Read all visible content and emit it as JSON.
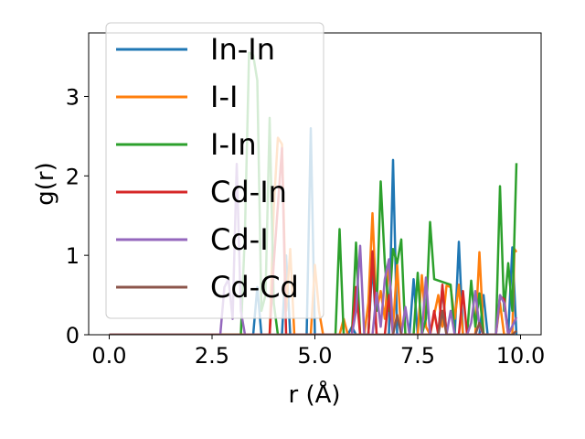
{
  "chart_data": {
    "type": "line",
    "xlabel": "r (Å)",
    "ylabel": "g(r)",
    "xlim": [
      -0.5,
      10.5
    ],
    "ylim": [
      0,
      3.8
    ],
    "xticks": [
      0.0,
      2.5,
      5.0,
      7.5,
      10.0
    ],
    "xtick_labels": [
      "0.0",
      "2.5",
      "5.0",
      "7.5",
      "10.0"
    ],
    "yticks": [
      0,
      1,
      2,
      3
    ],
    "ytick_labels": [
      "0",
      "1",
      "2",
      "3"
    ],
    "grid": false,
    "legend_position": "top-left",
    "series": [
      {
        "name": "In-In",
        "color": "#1f77b4",
        "points": [
          [
            0,
            0
          ],
          [
            3.5,
            0
          ],
          [
            3.6,
            0.6
          ],
          [
            3.7,
            0
          ],
          [
            4.2,
            0
          ],
          [
            4.3,
            1.0
          ],
          [
            4.4,
            0
          ],
          [
            4.8,
            0
          ],
          [
            4.9,
            2.6
          ],
          [
            5.0,
            0
          ],
          [
            5.8,
            0
          ],
          [
            5.9,
            0.1
          ],
          [
            6.0,
            0
          ],
          [
            6.3,
            0
          ],
          [
            6.4,
            0.9
          ],
          [
            6.5,
            0
          ],
          [
            6.8,
            0
          ],
          [
            6.9,
            2.2
          ],
          [
            7.0,
            0
          ],
          [
            7.3,
            0
          ],
          [
            7.4,
            0.7
          ],
          [
            7.5,
            0
          ],
          [
            8.0,
            0
          ],
          [
            8.1,
            0.6
          ],
          [
            8.2,
            0
          ],
          [
            8.4,
            0
          ],
          [
            8.5,
            1.17
          ],
          [
            8.6,
            0
          ],
          [
            9.0,
            0
          ],
          [
            9.1,
            0.5
          ],
          [
            9.2,
            0
          ],
          [
            9.7,
            0
          ],
          [
            9.8,
            1.1
          ],
          [
            9.9,
            0
          ]
        ]
      },
      {
        "name": "I-I",
        "color": "#ff7f0e",
        "points": [
          [
            0,
            0
          ],
          [
            3.9,
            0
          ],
          [
            4.0,
            1.6
          ],
          [
            4.1,
            2.48
          ],
          [
            4.2,
            2.4
          ],
          [
            4.3,
            0.3
          ],
          [
            4.4,
            1.08
          ],
          [
            4.5,
            0
          ],
          [
            4.9,
            0
          ],
          [
            5.0,
            0.88
          ],
          [
            5.1,
            0.3
          ],
          [
            5.2,
            0
          ],
          [
            5.6,
            0
          ],
          [
            5.7,
            0.2
          ],
          [
            5.8,
            0
          ],
          [
            6.2,
            0
          ],
          [
            6.3,
            0.4
          ],
          [
            6.4,
            1.53
          ],
          [
            6.5,
            0.3
          ],
          [
            6.6,
            0.55
          ],
          [
            6.7,
            0.2
          ],
          [
            6.8,
            0.9
          ],
          [
            6.9,
            0.1
          ],
          [
            7.0,
            0.88
          ],
          [
            7.1,
            0
          ],
          [
            7.5,
            0
          ],
          [
            7.6,
            0.75
          ],
          [
            7.7,
            0.1
          ],
          [
            7.8,
            0
          ],
          [
            8.0,
            0.5
          ],
          [
            8.1,
            0.1
          ],
          [
            8.2,
            0.62
          ],
          [
            8.3,
            0.6
          ],
          [
            8.4,
            0.2
          ],
          [
            8.5,
            0.63
          ],
          [
            8.6,
            0
          ],
          [
            8.9,
            0
          ],
          [
            9.0,
            1.04
          ],
          [
            9.1,
            0
          ],
          [
            9.4,
            0
          ],
          [
            9.5,
            0.4
          ],
          [
            9.6,
            0
          ],
          [
            9.8,
            0
          ],
          [
            9.85,
            1.08
          ],
          [
            9.9,
            1.04
          ]
        ]
      },
      {
        "name": "I-In",
        "color": "#2ca02c",
        "points": [
          [
            0,
            0
          ],
          [
            3.2,
            0
          ],
          [
            3.3,
            1.3
          ],
          [
            3.4,
            3.55
          ],
          [
            3.5,
            3.52
          ],
          [
            3.6,
            3.2
          ],
          [
            3.7,
            0.3
          ],
          [
            3.8,
            0.5
          ],
          [
            3.9,
            2.73
          ],
          [
            4.0,
            0.4
          ],
          [
            4.1,
            0
          ],
          [
            5.5,
            0
          ],
          [
            5.6,
            1.33
          ],
          [
            5.7,
            0
          ],
          [
            5.9,
            0
          ],
          [
            6.0,
            1.16
          ],
          [
            6.1,
            0
          ],
          [
            6.3,
            0
          ],
          [
            6.4,
            1.03
          ],
          [
            6.5,
            0.3
          ],
          [
            6.6,
            1.93
          ],
          [
            6.7,
            0.9
          ],
          [
            6.8,
            0.3
          ],
          [
            6.9,
            1.08
          ],
          [
            7.0,
            0.9
          ],
          [
            7.1,
            1.2
          ],
          [
            7.2,
            0
          ],
          [
            7.4,
            0
          ],
          [
            7.5,
            0.78
          ],
          [
            7.6,
            0
          ],
          [
            7.7,
            0.2
          ],
          [
            7.8,
            1.42
          ],
          [
            7.9,
            0.7
          ],
          [
            8.3,
            0.63
          ],
          [
            8.4,
            0
          ],
          [
            8.7,
            0
          ],
          [
            8.8,
            0.68
          ],
          [
            8.9,
            0.1
          ],
          [
            9.0,
            0.52
          ],
          [
            9.1,
            0
          ],
          [
            9.4,
            0
          ],
          [
            9.5,
            1.87
          ],
          [
            9.6,
            0.3
          ],
          [
            9.7,
            0.9
          ],
          [
            9.8,
            0.3
          ],
          [
            9.9,
            2.16
          ]
        ]
      },
      {
        "name": "Cd-In",
        "color": "#d62728",
        "points": [
          [
            0,
            0
          ],
          [
            3.9,
            0
          ],
          [
            4.0,
            0.9
          ],
          [
            4.2,
            2.35
          ],
          [
            4.3,
            0
          ],
          [
            5.9,
            0
          ],
          [
            6.0,
            0.6
          ],
          [
            6.1,
            0
          ],
          [
            6.3,
            0
          ],
          [
            6.4,
            1.05
          ],
          [
            6.5,
            0
          ],
          [
            6.7,
            0
          ],
          [
            6.8,
            0.5
          ],
          [
            6.9,
            0
          ],
          [
            7.8,
            0
          ],
          [
            7.9,
            0.3
          ],
          [
            8.0,
            0
          ],
          [
            8.1,
            0.63
          ],
          [
            8.2,
            0
          ],
          [
            8.5,
            0
          ],
          [
            8.6,
            0.55
          ],
          [
            8.7,
            0
          ],
          [
            9.4,
            0
          ],
          [
            9.5,
            0.48
          ],
          [
            9.6,
            0.45
          ],
          [
            9.7,
            0
          ]
        ]
      },
      {
        "name": "Cd-I",
        "color": "#9467bd",
        "points": [
          [
            0,
            0
          ],
          [
            2.7,
            0
          ],
          [
            2.8,
            0.6
          ],
          [
            2.9,
            0.7
          ],
          [
            3.0,
            0.2
          ],
          [
            3.1,
            2.15
          ],
          [
            3.2,
            0.3
          ],
          [
            3.3,
            0
          ],
          [
            5.9,
            0
          ],
          [
            6.0,
            0.3
          ],
          [
            6.1,
            1.12
          ],
          [
            6.2,
            0
          ],
          [
            6.4,
            0
          ],
          [
            6.5,
            0.53
          ],
          [
            6.6,
            0.1
          ],
          [
            6.7,
            0.7
          ],
          [
            6.8,
            0.95
          ],
          [
            6.9,
            0
          ],
          [
            7.1,
            0
          ],
          [
            7.2,
            0.35
          ],
          [
            7.3,
            0
          ],
          [
            7.6,
            0
          ],
          [
            7.7,
            0.72
          ],
          [
            7.8,
            0
          ],
          [
            8.2,
            0
          ],
          [
            8.3,
            0.3
          ],
          [
            8.4,
            0
          ],
          [
            8.7,
            0
          ],
          [
            8.8,
            0.15
          ],
          [
            8.9,
            0.55
          ],
          [
            9.0,
            0.1
          ],
          [
            9.1,
            0
          ],
          [
            9.4,
            0
          ],
          [
            9.5,
            0.5
          ],
          [
            9.6,
            0.4
          ],
          [
            9.7,
            0
          ],
          [
            9.9,
            0.22
          ]
        ]
      },
      {
        "name": "Cd-Cd",
        "color": "#8c564b",
        "points": [
          [
            0,
            0
          ],
          [
            6.9,
            0
          ],
          [
            7.0,
            0.25
          ],
          [
            7.1,
            0
          ],
          [
            8.0,
            0
          ],
          [
            8.1,
            0.3
          ],
          [
            8.2,
            0
          ],
          [
            8.9,
            0
          ],
          [
            9.0,
            0.15
          ],
          [
            9.1,
            0
          ],
          [
            9.8,
            0
          ],
          [
            9.9,
            0.05
          ]
        ]
      }
    ]
  }
}
